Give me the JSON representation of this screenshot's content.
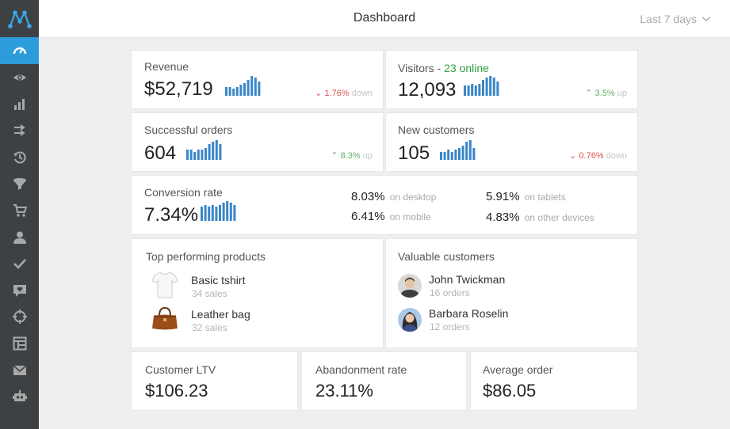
{
  "header": {
    "title": "Dashboard",
    "range_label": "Last 7 days"
  },
  "sidebar": {
    "items": [
      {
        "icon": "speedometer-icon",
        "active": true
      },
      {
        "icon": "eye-icon"
      },
      {
        "icon": "bar-chart-icon"
      },
      {
        "icon": "transfer-arrows-icon"
      },
      {
        "icon": "history-icon"
      },
      {
        "icon": "funnel-icon"
      },
      {
        "icon": "cart-icon"
      },
      {
        "icon": "user-icon"
      },
      {
        "icon": "checkmark-icon"
      },
      {
        "icon": "chat-heart-icon"
      },
      {
        "icon": "crosshair-icon"
      },
      {
        "icon": "layout-icon"
      },
      {
        "icon": "envelope-icon"
      },
      {
        "icon": "robot-icon"
      }
    ]
  },
  "revenue": {
    "label": "Revenue",
    "value": "$52,719",
    "trend_value": "1.76%",
    "trend_word": "down"
  },
  "visitors": {
    "label": "Visitors",
    "sep": " - ",
    "online": "23 online",
    "value": "12,093",
    "trend_value": "3.5%",
    "trend_word": "up"
  },
  "orders": {
    "label": "Successful orders",
    "value": "604",
    "trend_value": "8.3%",
    "trend_word": "up"
  },
  "customers": {
    "label": "New customers",
    "value": "105",
    "trend_value": "0.76%",
    "trend_word": "down"
  },
  "conversion": {
    "label": "Conversion rate",
    "value": "7.34%",
    "breakdown": [
      {
        "value": "8.03%",
        "label": "on desktop"
      },
      {
        "value": "6.41%",
        "label": "on mobile"
      },
      {
        "value": "5.91%",
        "label": "on tablets"
      },
      {
        "value": "4.83%",
        "label": "on other devices"
      }
    ]
  },
  "products": {
    "title": "Top performing products",
    "items": [
      {
        "name": "Basic tshirt",
        "sub": "34 sales"
      },
      {
        "name": "Leather bag",
        "sub": "32 sales"
      }
    ]
  },
  "valuable": {
    "title": "Valuable customers",
    "items": [
      {
        "name": "John Twickman",
        "sub": "16 orders"
      },
      {
        "name": "Barbara Roselin",
        "sub": "12 orders"
      }
    ]
  },
  "ltv": {
    "label": "Customer LTV",
    "value": "$106.23"
  },
  "abandon": {
    "label": "Abandonment rate",
    "value": "23.11%"
  },
  "avg_order": {
    "label": "Average order",
    "value": "$86.05"
  },
  "sparklines": {
    "color": "#3a86c8",
    "revenue": [
      5,
      5,
      4,
      5,
      6,
      7,
      9,
      11,
      10,
      8
    ],
    "visitors": [
      5,
      5,
      6,
      5,
      6,
      8,
      9,
      10,
      9,
      7
    ],
    "orders": [
      5,
      5,
      4,
      5,
      5,
      6,
      8,
      9,
      10,
      8
    ],
    "customers": [
      4,
      4,
      5,
      4,
      5,
      6,
      7,
      9,
      10,
      6
    ],
    "conversion": [
      8,
      9,
      8,
      9,
      8,
      9,
      10,
      11,
      10,
      9
    ]
  }
}
